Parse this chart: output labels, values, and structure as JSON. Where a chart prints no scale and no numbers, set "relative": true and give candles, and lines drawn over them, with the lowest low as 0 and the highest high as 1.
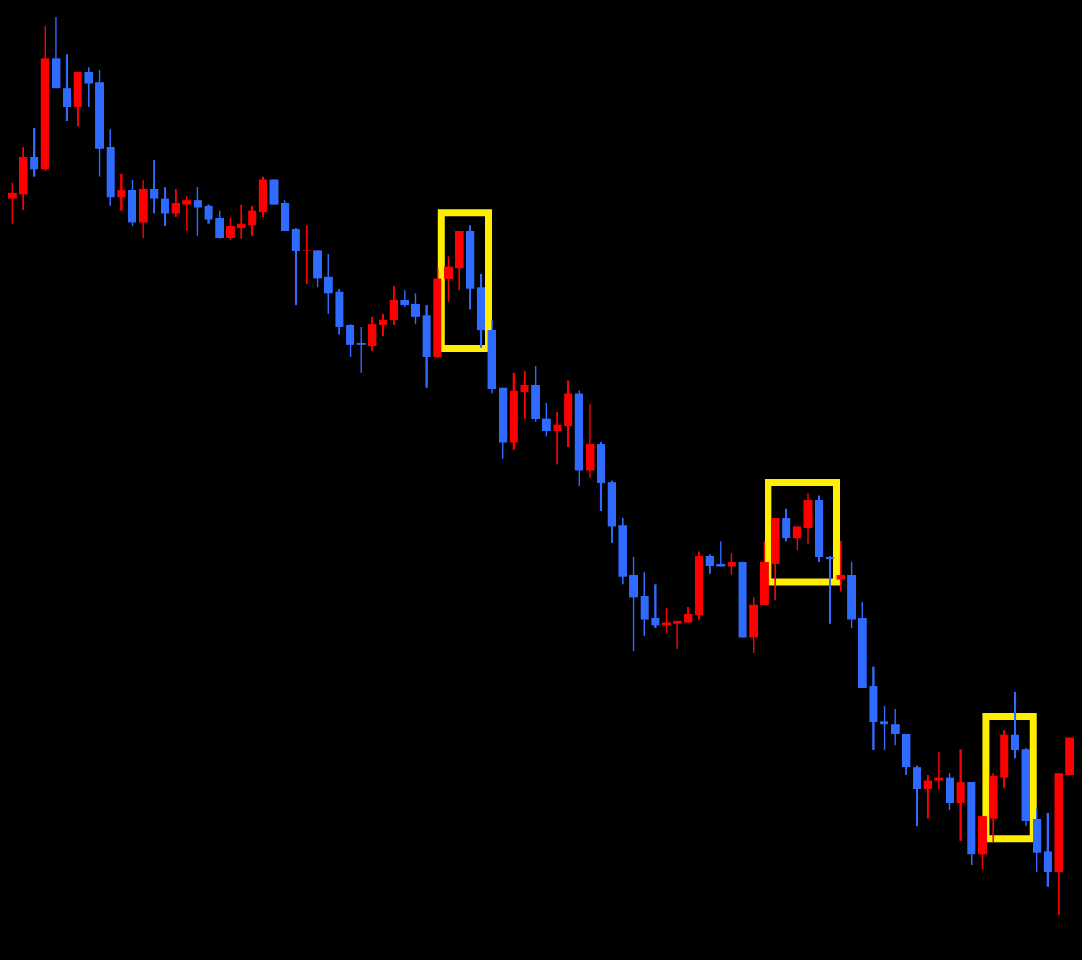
{
  "chart_data": {
    "type": "candlestick",
    "relative": true,
    "categories": [
      null,
      null,
      null,
      null,
      null,
      null,
      null,
      null,
      null,
      null,
      null,
      null,
      null,
      null,
      null,
      null,
      null,
      null,
      null,
      null,
      null,
      null,
      null,
      null,
      null,
      null,
      null,
      null,
      null,
      null,
      null,
      null,
      null,
      null,
      null,
      null,
      null,
      null,
      null,
      null,
      null,
      null,
      null,
      null,
      null,
      null,
      null,
      null,
      null,
      null,
      null,
      null,
      null,
      null,
      null,
      null,
      null,
      null,
      null,
      null,
      null,
      null,
      null,
      null,
      null,
      null,
      null,
      null,
      null,
      null,
      null,
      null,
      null,
      null,
      null,
      null,
      null,
      null,
      null,
      null,
      null,
      null,
      null,
      null,
      null,
      null,
      null,
      null,
      null,
      null,
      null,
      null,
      null,
      null,
      null,
      null,
      null,
      null
    ],
    "ohlc": [
      [
        0.798,
        0.815,
        0.77,
        0.804
      ],
      [
        0.802,
        0.855,
        0.785,
        0.844
      ],
      [
        0.844,
        0.876,
        0.822,
        0.83
      ],
      [
        0.83,
        0.989,
        0.828,
        0.954
      ],
      [
        0.954,
        1,
        0.92,
        0.92
      ],
      [
        0.92,
        0.958,
        0.884,
        0.9
      ],
      [
        0.9,
        0.938,
        0.878,
        0.938
      ],
      [
        0.938,
        0.944,
        0.9,
        0.926
      ],
      [
        0.927,
        0.941,
        0.822,
        0.853
      ],
      [
        0.855,
        0.875,
        0.79,
        0.799
      ],
      [
        0.799,
        0.825,
        0.784,
        0.807
      ],
      [
        0.807,
        0.818,
        0.767,
        0.771
      ],
      [
        0.771,
        0.818,
        0.754,
        0.808
      ],
      [
        0.808,
        0.841,
        0.781,
        0.798
      ],
      [
        0.798,
        0.81,
        0.767,
        0.781
      ],
      [
        0.781,
        0.808,
        0.777,
        0.793
      ],
      [
        0.791,
        0.801,
        0.762,
        0.796
      ],
      [
        0.796,
        0.81,
        0.756,
        0.788
      ],
      [
        0.79,
        0.791,
        0.77,
        0.774
      ],
      [
        0.776,
        0.784,
        0.753,
        0.754
      ],
      [
        0.754,
        0.776,
        0.751,
        0.767
      ],
      [
        0.765,
        0.791,
        0.753,
        0.77
      ],
      [
        0.768,
        0.79,
        0.756,
        0.784
      ],
      [
        0.782,
        0.822,
        0.777,
        0.819
      ],
      [
        0.819,
        0.819,
        0.791,
        0.791
      ],
      [
        0.793,
        0.796,
        0.762,
        0.762
      ],
      [
        0.764,
        0.765,
        0.679,
        0.739
      ],
      [
        0.739,
        0.768,
        0.703,
        0.74
      ],
      [
        0.74,
        0.74,
        0.699,
        0.709
      ],
      [
        0.711,
        0.736,
        0.669,
        0.692
      ],
      [
        0.694,
        0.697,
        0.646,
        0.655
      ],
      [
        0.657,
        0.658,
        0.621,
        0.635
      ],
      [
        0.637,
        0.655,
        0.604,
        0.635
      ],
      [
        0.634,
        0.666,
        0.628,
        0.658
      ],
      [
        0.657,
        0.669,
        0.645,
        0.663
      ],
      [
        0.662,
        0.7,
        0.657,
        0.685
      ],
      [
        0.685,
        0.696,
        0.677,
        0.679
      ],
      [
        0.68,
        0.692,
        0.658,
        0.666
      ],
      [
        0.668,
        0.679,
        0.587,
        0.621
      ],
      [
        0.621,
        0.72,
        0.62,
        0.709
      ],
      [
        0.708,
        0.733,
        0.683,
        0.722
      ],
      [
        0.72,
        0.762,
        0.696,
        0.762
      ],
      [
        0.762,
        0.768,
        0.674,
        0.697
      ],
      [
        0.699,
        0.714,
        0.632,
        0.651
      ],
      [
        0.652,
        0.662,
        0.581,
        0.586
      ],
      [
        0.587,
        0.587,
        0.508,
        0.526
      ],
      [
        0.526,
        0.604,
        0.518,
        0.584
      ],
      [
        0.583,
        0.606,
        0.552,
        0.59
      ],
      [
        0.59,
        0.611,
        0.549,
        0.552
      ],
      [
        0.553,
        0.57,
        0.533,
        0.539
      ],
      [
        0.539,
        0.56,
        0.502,
        0.546
      ],
      [
        0.544,
        0.595,
        0.521,
        0.581
      ],
      [
        0.581,
        0.584,
        0.478,
        0.495
      ],
      [
        0.495,
        0.569,
        0.487,
        0.524
      ],
      [
        0.524,
        0.527,
        0.45,
        0.481
      ],
      [
        0.482,
        0.484,
        0.414,
        0.433
      ],
      [
        0.434,
        0.442,
        0.368,
        0.377
      ],
      [
        0.379,
        0.399,
        0.294,
        0.354
      ],
      [
        0.355,
        0.382,
        0.311,
        0.329
      ],
      [
        0.331,
        0.368,
        0.32,
        0.323
      ],
      [
        0.323,
        0.342,
        0.315,
        0.326
      ],
      [
        0.325,
        0.328,
        0.297,
        0.328
      ],
      [
        0.326,
        0.343,
        0.326,
        0.335
      ],
      [
        0.334,
        0.405,
        0.329,
        0.4
      ],
      [
        0.4,
        0.402,
        0.38,
        0.389
      ],
      [
        0.391,
        0.416,
        0.388,
        0.388
      ],
      [
        0.388,
        0.403,
        0.379,
        0.393
      ],
      [
        0.393,
        0.394,
        0.309,
        0.309
      ],
      [
        0.309,
        0.354,
        0.292,
        0.346
      ],
      [
        0.345,
        0.416,
        0.345,
        0.393
      ],
      [
        0.391,
        0.442,
        0.351,
        0.442
      ],
      [
        0.442,
        0.453,
        0.416,
        0.42
      ],
      [
        0.42,
        0.433,
        0.406,
        0.433
      ],
      [
        0.431,
        0.47,
        0.413,
        0.462
      ],
      [
        0.462,
        0.467,
        0.393,
        0.399
      ],
      [
        0.399,
        0.4,
        0.325,
        0.396
      ],
      [
        0.374,
        0.417,
        0.36,
        0.379
      ],
      [
        0.379,
        0.394,
        0.32,
        0.329
      ],
      [
        0.331,
        0.349,
        0.253,
        0.253
      ],
      [
        0.255,
        0.277,
        0.184,
        0.215
      ],
      [
        0.216,
        0.233,
        0.184,
        0.213
      ],
      [
        0.213,
        0.23,
        0.189,
        0.202
      ],
      [
        0.202,
        0.202,
        0.156,
        0.165
      ],
      [
        0.165,
        0.167,
        0.099,
        0.141
      ],
      [
        0.141,
        0.156,
        0.108,
        0.15
      ],
      [
        0.15,
        0.182,
        0.141,
        0.153
      ],
      [
        0.153,
        0.158,
        0.117,
        0.125
      ],
      [
        0.125,
        0.185,
        0.083,
        0.148
      ],
      [
        0.148,
        0.148,
        0.056,
        0.068
      ],
      [
        0.068,
        0.11,
        0.051,
        0.11
      ],
      [
        0.108,
        0.158,
        0.082,
        0.155
      ],
      [
        0.153,
        0.206,
        0.142,
        0.201
      ],
      [
        0.201,
        0.249,
        0.175,
        0.184
      ],
      [
        0.185,
        0.187,
        0.1,
        0.105
      ],
      [
        0.107,
        0.119,
        0.049,
        0.07
      ],
      [
        0.071,
        0.114,
        0.032,
        0.048
      ],
      [
        0.048,
        0.158,
        0,
        0.158
      ],
      [
        0.156,
        0.198,
        0.156,
        0.198
      ]
    ],
    "colors": [
      "#ff0000",
      "#ff0000",
      "#2f6bff",
      "#ff0000",
      "#2f6bff",
      "#2f6bff",
      "#ff0000",
      "#2f6bff",
      "#2f6bff",
      "#2f6bff",
      "#ff0000",
      "#2f6bff",
      "#ff0000",
      "#2f6bff",
      "#2f6bff",
      "#ff0000",
      "#ff0000",
      "#2f6bff",
      "#2f6bff",
      "#2f6bff",
      "#ff0000",
      "#ff0000",
      "#ff0000",
      "#ff0000",
      "#2f6bff",
      "#2f6bff",
      "#2f6bff",
      "#ff0000",
      "#2f6bff",
      "#2f6bff",
      "#2f6bff",
      "#2f6bff",
      "#2f6bff",
      "#ff0000",
      "#ff0000",
      "#ff0000",
      "#2f6bff",
      "#2f6bff",
      "#2f6bff",
      "#ff0000",
      "#ff0000",
      "#ff0000",
      "#2f6bff",
      "#2f6bff",
      "#2f6bff",
      "#2f6bff",
      "#ff0000",
      "#ff0000",
      "#2f6bff",
      "#2f6bff",
      "#ff0000",
      "#ff0000",
      "#2f6bff",
      "#ff0000",
      "#2f6bff",
      "#2f6bff",
      "#2f6bff",
      "#2f6bff",
      "#2f6bff",
      "#2f6bff",
      "#ff0000",
      "#ff0000",
      "#ff0000",
      "#ff0000",
      "#2f6bff",
      "#2f6bff",
      "#ff0000",
      "#2f6bff",
      "#ff0000",
      "#ff0000",
      "#ff0000",
      "#2f6bff",
      "#ff0000",
      "#ff0000",
      "#2f6bff",
      "#2f6bff",
      "#ff0000",
      "#2f6bff",
      "#2f6bff",
      "#2f6bff",
      "#2f6bff",
      "#2f6bff",
      "#2f6bff",
      "#2f6bff",
      "#ff0000",
      "#ff0000",
      "#2f6bff",
      "#ff0000",
      "#2f6bff",
      "#ff0000",
      "#ff0000",
      "#ff0000",
      "#2f6bff",
      "#2f6bff",
      "#2f6bff",
      "#2f6bff",
      "#ff0000",
      "#ff0000"
    ]
  }
}
